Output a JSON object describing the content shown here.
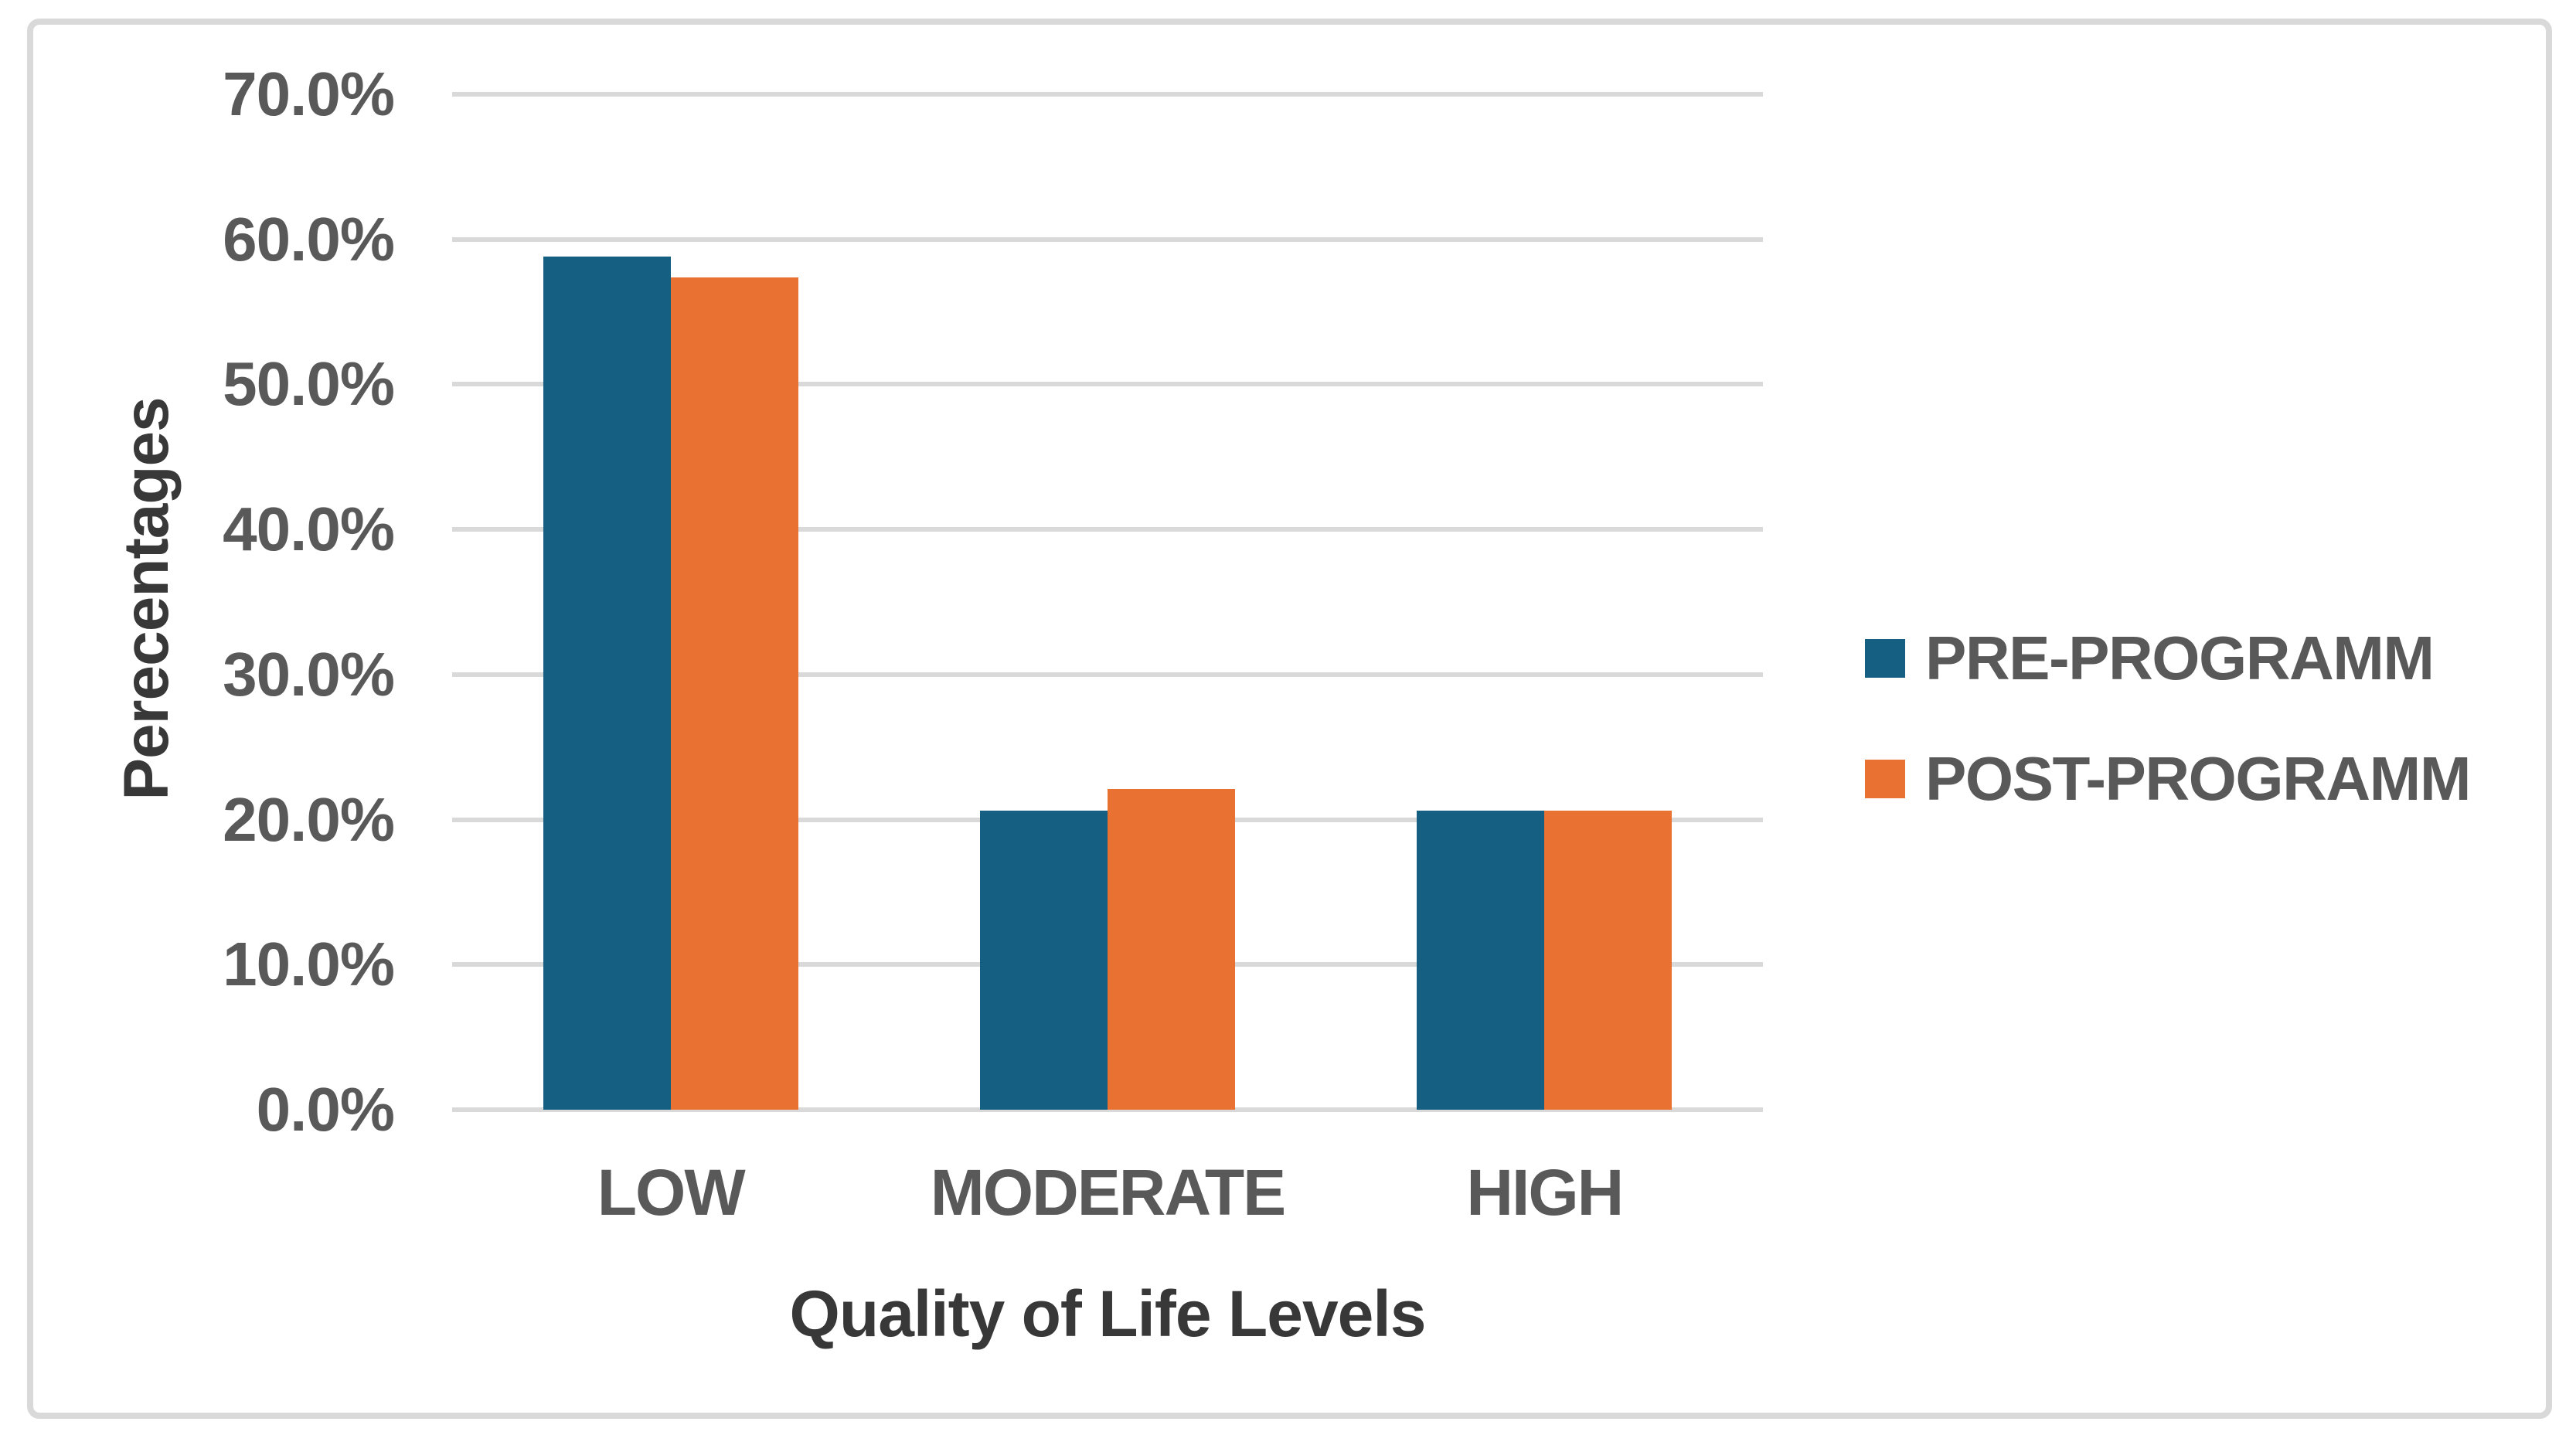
{
  "chart_data": {
    "type": "bar",
    "title": "",
    "categories": [
      "LOW",
      "MODERATE",
      "HIGH"
    ],
    "series": [
      {
        "name": "PRE-PROGRAMM",
        "color": "#156082",
        "values": [
          58.8,
          20.6,
          20.6
        ]
      },
      {
        "name": "POST-PROGRAMM",
        "color": "#E97132",
        "values": [
          57.4,
          22.1,
          20.6
        ]
      }
    ],
    "xlabel": "Quality of Life Levels",
    "ylabel": "Perecentages",
    "ylim": [
      0,
      70
    ],
    "yticks": [
      {
        "value": 70,
        "label": "70.0%"
      },
      {
        "value": 60,
        "label": "60.0%"
      },
      {
        "value": 50,
        "label": "50.0%"
      },
      {
        "value": 40,
        "label": "40.0%"
      },
      {
        "value": 30,
        "label": "30.0%"
      },
      {
        "value": 20,
        "label": "20.0%"
      },
      {
        "value": 10,
        "label": "10.0%"
      },
      {
        "value": 0,
        "label": "0.0%"
      }
    ],
    "grid": true,
    "legend_position": "right",
    "colors": {
      "gridline": "#D9D9D9",
      "tick_label": "#595959",
      "axis_title": "#383838",
      "frame_border": "#D9D9D9",
      "background": "#FFFFFF"
    }
  }
}
